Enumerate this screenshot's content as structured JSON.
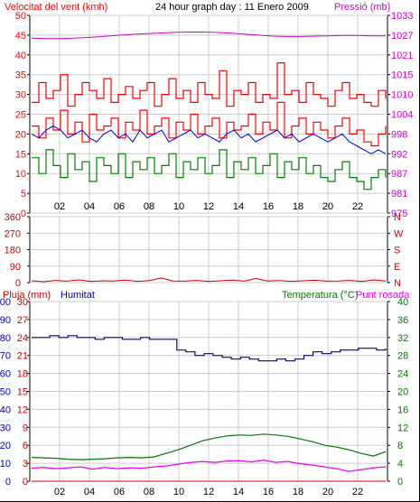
{
  "header": {
    "wind_label": "Velocitat del vent (kmh)",
    "title": "24 hour graph day : 11 Enero 2009",
    "pressure_label": "Pressió (mb)"
  },
  "panel3_labels": {
    "rain": "Pluja (mm)",
    "humidity": "Humitat",
    "temperature": "Temperatura (°C)",
    "dewpoint": "Punt rosada"
  },
  "colors": {
    "wind_speed": "#ff0000",
    "wind_gust": "#ee0000",
    "wind_avg": "#0000cc",
    "wind_low": "#008000",
    "pressure": "#cc00cc",
    "direction": "#cc0000",
    "humidity": "#0000aa",
    "temperature": "#007700",
    "dewpoint": "#ee00ee",
    "rain": "#cc0000",
    "grid": "#cccccc"
  },
  "chart_data": [
    {
      "type": "line",
      "name": "wind-and-pressure",
      "x_ticks": [
        "02",
        "04",
        "06",
        "08",
        "10",
        "12",
        "14",
        "16",
        "18",
        "20",
        "22"
      ],
      "y_left_ticks": [
        "0",
        "5",
        "10",
        "15",
        "20",
        "25",
        "30",
        "35",
        "40",
        "45",
        "50"
      ],
      "y_left_range": [
        0,
        50
      ],
      "y_right_ticks": [
        "975",
        "981",
        "987",
        "992",
        "998",
        "1004",
        "1010",
        "1015",
        "1021",
        "1027",
        "1033"
      ],
      "y_right_range": [
        975,
        1033
      ],
      "series": [
        {
          "key": "gust",
          "values": [
            28,
            33,
            29,
            31,
            35,
            27,
            30,
            33,
            31,
            29,
            34,
            28,
            30,
            32,
            29,
            31,
            33,
            27,
            30,
            34,
            29,
            31,
            28,
            33,
            30,
            29,
            36,
            27,
            31,
            30,
            33,
            28,
            30,
            29,
            38,
            30,
            31,
            28,
            33,
            30,
            29,
            27,
            31,
            33,
            29,
            30,
            28,
            27,
            31,
            29
          ]
        },
        {
          "key": "speed",
          "values": [
            22,
            19,
            24,
            21,
            26,
            20,
            23,
            18,
            25,
            21,
            22,
            24,
            19,
            23,
            21,
            26,
            20,
            22,
            24,
            19,
            23,
            21,
            25,
            20,
            22,
            24,
            19,
            23,
            21,
            22,
            25,
            20,
            23,
            21,
            28,
            19,
            22,
            24,
            20,
            23,
            21,
            19,
            22,
            24,
            20,
            21,
            18,
            17,
            20,
            22
          ]
        },
        {
          "key": "avg",
          "values": [
            20,
            19,
            21,
            22,
            21,
            19,
            20,
            21,
            19,
            18,
            20,
            21,
            19,
            20,
            18,
            21,
            19,
            20,
            21,
            18,
            19,
            20,
            21,
            19,
            20,
            19,
            18,
            20,
            21,
            19,
            20,
            18,
            19,
            20,
            21,
            19,
            20,
            18,
            19,
            20,
            19,
            18,
            19,
            20,
            18,
            17,
            16,
            15,
            16,
            15
          ]
        },
        {
          "key": "low",
          "values": [
            14,
            10,
            16,
            12,
            9,
            15,
            11,
            13,
            8,
            14,
            12,
            10,
            15,
            9,
            13,
            11,
            14,
            10,
            12,
            15,
            9,
            13,
            11,
            14,
            10,
            12,
            16,
            9,
            13,
            11,
            14,
            10,
            12,
            15,
            9,
            13,
            11,
            14,
            10,
            12,
            9,
            8,
            11,
            13,
            9,
            8,
            6,
            9,
            11,
            9
          ]
        },
        {
          "key": "pressure",
          "values": [
            1026.3,
            1026.2,
            1026.2,
            1026.3,
            1026.5,
            1026.8,
            1027.1,
            1027.4,
            1027.6,
            1027.8,
            1028.0,
            1028.1,
            1028.1,
            1028.0,
            1027.8,
            1027.5,
            1027.2,
            1026.9,
            1026.8,
            1026.8,
            1026.9,
            1027.0,
            1027.1,
            1027.1,
            1027.0,
            1027.0
          ]
        }
      ]
    },
    {
      "type": "line",
      "name": "wind-direction",
      "x_ticks": [
        "02",
        "04",
        "06",
        "08",
        "10",
        "12",
        "14",
        "16",
        "18",
        "20",
        "22"
      ],
      "y_left_ticks": [
        "0",
        "90",
        "180",
        "270",
        "360"
      ],
      "y_left_range": [
        0,
        360
      ],
      "y_right_ticks": [
        "N",
        "E",
        "S",
        "W",
        "N"
      ],
      "series": [
        {
          "key": "direction",
          "values": [
            10,
            5,
            12,
            8,
            15,
            6,
            10,
            9,
            14,
            7,
            11,
            25,
            9,
            8,
            12,
            6,
            10,
            14,
            8,
            22,
            9,
            11,
            7,
            10,
            13,
            8,
            9,
            12,
            6,
            15,
            8
          ]
        }
      ]
    },
    {
      "type": "line",
      "name": "rain-humidity-temperature",
      "x_ticks": [
        "02",
        "04",
        "06",
        "08",
        "10",
        "12",
        "14",
        "16",
        "18",
        "20",
        "22"
      ],
      "y_left_ticks": [
        "0",
        "3",
        "6",
        "9",
        "12",
        "15",
        "18",
        "21",
        "24",
        "27",
        "30"
      ],
      "y_left_range": [
        0,
        30
      ],
      "y_hum_ticks": [
        "0",
        "10",
        "20",
        "30",
        "40",
        "50",
        "60",
        "70",
        "80",
        "90",
        "100"
      ],
      "y_hum_range": [
        0,
        100
      ],
      "y_right_ticks": [
        "0",
        "4",
        "8",
        "12",
        "16",
        "20",
        "24",
        "28",
        "32",
        "36",
        "40"
      ],
      "y_right_range": [
        0,
        40
      ],
      "series": [
        {
          "key": "humidity",
          "values": [
            80,
            80,
            81,
            80,
            81,
            80,
            80,
            79,
            80,
            80,
            79,
            79,
            80,
            79,
            79,
            79,
            73,
            72,
            70,
            71,
            70,
            69,
            68,
            69,
            68,
            67,
            67,
            68,
            67,
            68,
            70,
            72,
            71,
            72,
            73,
            73,
            74,
            74,
            73,
            74
          ]
        },
        {
          "key": "temperature",
          "values": [
            5.3,
            5.2,
            5.1,
            4.9,
            4.8,
            4.9,
            5.0,
            5.2,
            5.3,
            5.2,
            5.4,
            6.2,
            7.0,
            8.0,
            9.0,
            9.6,
            10.1,
            10.3,
            10.2,
            10.5,
            10.3,
            10.0,
            9.4,
            8.8,
            8.0,
            7.6,
            7.0,
            6.2,
            5.6,
            6.6
          ]
        },
        {
          "key": "dewpoint",
          "values": [
            2.9,
            3.1,
            2.8,
            3.0,
            3.2,
            2.7,
            3.1,
            2.8,
            3.0,
            2.9,
            3.2,
            3.4,
            3.8,
            4.2,
            4.4,
            4.2,
            4.5,
            4.6,
            4.3,
            4.7,
            4.2,
            4.4,
            3.9,
            3.6,
            3.2,
            2.8,
            2.2,
            2.6,
            3.0,
            3.2
          ]
        },
        {
          "key": "rain",
          "values": [
            0,
            0,
            0,
            0,
            0,
            0,
            0,
            0,
            0,
            0,
            0,
            0,
            0,
            0,
            0,
            0
          ]
        }
      ]
    }
  ]
}
